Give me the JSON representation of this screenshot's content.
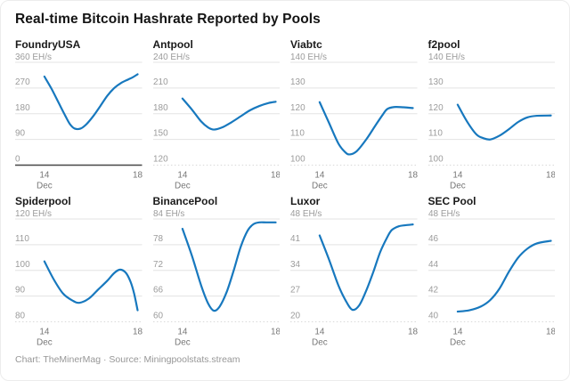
{
  "title": "Real-time Bitcoin Hashrate Reported by Pools",
  "footer": "Chart: TheMinerMag · Source: Miningpoolstats.stream",
  "colors": {
    "line": "#1778be",
    "grid": "#e3e3e3",
    "grid_dashed": "#d9d9d9",
    "baseline": "#474747",
    "tick_label": "#9b9b9b",
    "axis_label": "#767676",
    "unit_label": "#9b9b9b"
  },
  "chart_data": {
    "type": "line",
    "x_label_month": "Dec",
    "x_tick_start": "14",
    "x_tick_end": "18",
    "x_range": [
      14,
      18
    ],
    "unit": "EH/s",
    "panels": [
      {
        "name": "FoundryUSA",
        "unit_label": "360 EH/s",
        "ylim": [
          0,
          360
        ],
        "yticks": [
          270,
          180,
          90,
          0
        ],
        "zero_base": true,
        "points": [
          [
            14,
            310
          ],
          [
            14.3,
            268
          ],
          [
            14.6,
            220
          ],
          [
            14.9,
            172
          ],
          [
            15.1,
            143
          ],
          [
            15.3,
            128
          ],
          [
            15.55,
            128
          ],
          [
            15.8,
            143
          ],
          [
            16.1,
            172
          ],
          [
            16.4,
            207
          ],
          [
            16.7,
            243
          ],
          [
            17.0,
            270
          ],
          [
            17.3,
            288
          ],
          [
            17.6,
            300
          ],
          [
            17.8,
            308
          ],
          [
            18,
            318
          ]
        ]
      },
      {
        "name": "Antpool",
        "unit_label": "240 EH/s",
        "ylim": [
          120,
          240
        ],
        "yticks": [
          210,
          180,
          150,
          120
        ],
        "zero_base": false,
        "points": [
          [
            14,
            197.7
          ],
          [
            14.4,
            185
          ],
          [
            14.8,
            171
          ],
          [
            15.1,
            164
          ],
          [
            15.35,
            161.5
          ],
          [
            15.7,
            164
          ],
          [
            16.1,
            170
          ],
          [
            16.5,
            177
          ],
          [
            16.9,
            184
          ],
          [
            17.3,
            189
          ],
          [
            17.7,
            192.5
          ],
          [
            18,
            194
          ]
        ]
      },
      {
        "name": "Viabtc",
        "unit_label": "140 EH/s",
        "ylim": [
          100,
          140
        ],
        "yticks": [
          130,
          120,
          110,
          100
        ],
        "zero_base": false,
        "points": [
          [
            14,
            124.5
          ],
          [
            14.4,
            116.5
          ],
          [
            14.8,
            108.5
          ],
          [
            15.1,
            105
          ],
          [
            15.3,
            104.2
          ],
          [
            15.6,
            105.5
          ],
          [
            16,
            110
          ],
          [
            16.4,
            115.5
          ],
          [
            16.7,
            119.5
          ],
          [
            16.9,
            121.8
          ],
          [
            17.2,
            122.6
          ],
          [
            17.6,
            122.5
          ],
          [
            18,
            122.2
          ]
        ]
      },
      {
        "name": "f2pool",
        "unit_label": "140 EH/s",
        "ylim": [
          100,
          140
        ],
        "yticks": [
          130,
          120,
          110,
          100
        ],
        "zero_base": false,
        "points": [
          [
            14,
            123.5
          ],
          [
            14.4,
            117
          ],
          [
            14.8,
            112
          ],
          [
            15.1,
            110.5
          ],
          [
            15.4,
            110
          ],
          [
            15.8,
            111.5
          ],
          [
            16.2,
            114
          ],
          [
            16.6,
            116.8
          ],
          [
            17,
            118.6
          ],
          [
            17.4,
            119.2
          ],
          [
            18,
            119.3
          ]
        ]
      },
      {
        "name": "Spiderpool",
        "unit_label": "120 EH/s",
        "ylim": [
          80,
          120
        ],
        "yticks": [
          110,
          100,
          90,
          80
        ],
        "zero_base": false,
        "points": [
          [
            14,
            103.5
          ],
          [
            14.4,
            96.5
          ],
          [
            14.8,
            91
          ],
          [
            15.2,
            88.3
          ],
          [
            15.5,
            87.4
          ],
          [
            15.9,
            89
          ],
          [
            16.3,
            92.5
          ],
          [
            16.7,
            96
          ],
          [
            17.0,
            99
          ],
          [
            17.25,
            100.3
          ],
          [
            17.5,
            99
          ],
          [
            17.7,
            95.5
          ],
          [
            17.85,
            91
          ],
          [
            18,
            84.5
          ]
        ]
      },
      {
        "name": "BinancePool",
        "unit_label": "84 EH/s",
        "ylim": [
          60,
          84
        ],
        "yticks": [
          78,
          72,
          66,
          60
        ],
        "zero_base": false,
        "points": [
          [
            14,
            81.7
          ],
          [
            14.4,
            75.5
          ],
          [
            14.8,
            68.5
          ],
          [
            15.1,
            64.3
          ],
          [
            15.35,
            62.6
          ],
          [
            15.6,
            63.6
          ],
          [
            15.9,
            67
          ],
          [
            16.2,
            72
          ],
          [
            16.5,
            77.5
          ],
          [
            16.8,
            81.3
          ],
          [
            17.05,
            82.8
          ],
          [
            17.3,
            83.2
          ],
          [
            17.6,
            83.2
          ],
          [
            18,
            83.2
          ]
        ]
      },
      {
        "name": "Luxor",
        "unit_label": "48 EH/s",
        "ylim": [
          20,
          48
        ],
        "yticks": [
          41,
          34,
          27,
          20
        ],
        "zero_base": false,
        "points": [
          [
            14,
            43.5
          ],
          [
            14.4,
            37
          ],
          [
            14.8,
            30
          ],
          [
            15.1,
            26
          ],
          [
            15.4,
            23.3
          ],
          [
            15.7,
            24.5
          ],
          [
            16.0,
            28.5
          ],
          [
            16.3,
            33.5
          ],
          [
            16.6,
            39
          ],
          [
            16.9,
            43
          ],
          [
            17.1,
            45
          ],
          [
            17.4,
            46
          ],
          [
            17.7,
            46.3
          ],
          [
            18,
            46.5
          ]
        ]
      },
      {
        "name": "SEC Pool",
        "unit_label": "48 EH/s",
        "ylim": [
          40,
          48
        ],
        "yticks": [
          46,
          44,
          42,
          40
        ],
        "zero_base": false,
        "points": [
          [
            14,
            40.8
          ],
          [
            14.5,
            40.9
          ],
          [
            15,
            41.2
          ],
          [
            15.4,
            41.7
          ],
          [
            15.8,
            42.6
          ],
          [
            16.2,
            43.9
          ],
          [
            16.6,
            45
          ],
          [
            17,
            45.7
          ],
          [
            17.4,
            46.1
          ],
          [
            18,
            46.3
          ]
        ]
      }
    ]
  }
}
